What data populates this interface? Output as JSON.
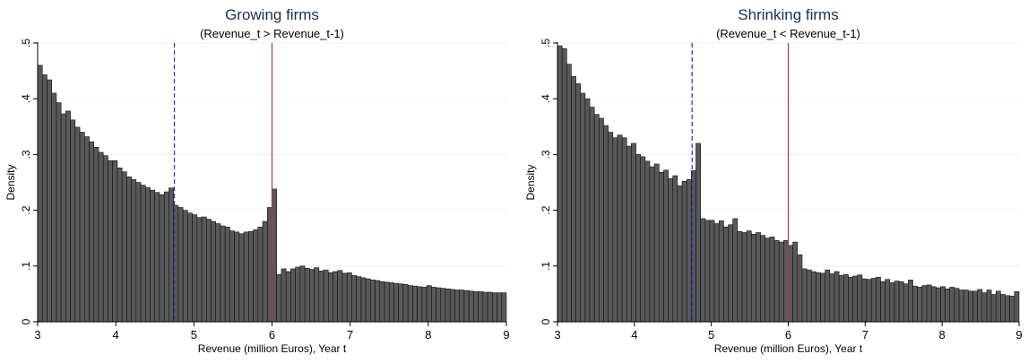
{
  "chart_data": [
    {
      "type": "bar",
      "title": "Growing firms",
      "subtitle": "(Revenue_t > Revenue_t-1)",
      "xlabel": "Revenue (million Euros), Year t",
      "ylabel": "Density",
      "xlim": [
        3,
        9
      ],
      "ylim": [
        0,
        0.5
      ],
      "x_ticks": [
        "3",
        "4",
        "5",
        "6",
        "7",
        "8",
        "9"
      ],
      "y_ticks": [
        "0",
        ".1",
        ".2",
        ".3",
        ".4",
        ".5"
      ],
      "bin_start": 3.0,
      "bin_width": 0.06,
      "values": [
        0.46,
        0.443,
        0.434,
        0.41,
        0.393,
        0.373,
        0.378,
        0.362,
        0.349,
        0.34,
        0.332,
        0.323,
        0.313,
        0.304,
        0.298,
        0.289,
        0.289,
        0.276,
        0.269,
        0.26,
        0.255,
        0.25,
        0.245,
        0.241,
        0.236,
        0.232,
        0.228,
        0.233,
        0.24,
        0.209,
        0.205,
        0.2,
        0.195,
        0.192,
        0.187,
        0.188,
        0.184,
        0.18,
        0.176,
        0.172,
        0.17,
        0.163,
        0.161,
        0.158,
        0.161,
        0.162,
        0.165,
        0.17,
        0.18,
        0.205,
        0.238,
        0.085,
        0.095,
        0.09,
        0.095,
        0.098,
        0.1,
        0.096,
        0.094,
        0.097,
        0.091,
        0.093,
        0.088,
        0.09,
        0.092,
        0.087,
        0.088,
        0.083,
        0.081,
        0.079,
        0.077,
        0.075,
        0.074,
        0.072,
        0.071,
        0.07,
        0.069,
        0.068,
        0.067,
        0.065,
        0.064,
        0.063,
        0.062,
        0.065,
        0.062,
        0.061,
        0.06,
        0.059,
        0.058,
        0.057,
        0.057,
        0.056,
        0.055,
        0.054,
        0.054,
        0.053,
        0.053,
        0.052,
        0.052,
        0.052
      ],
      "reference_lines": [
        {
          "x": 4.75,
          "style": "dashed",
          "color": "#1f33c8"
        },
        {
          "x": 6.0,
          "style": "solid",
          "color": "#b0305a"
        }
      ],
      "bar_color": "#595959",
      "grid": true,
      "legend": "none"
    },
    {
      "type": "bar",
      "title": "Shrinking firms",
      "subtitle": "(Revenue_t < Revenue_t-1)",
      "xlabel": "Revenue (million Euros), Year t",
      "ylabel": "Density",
      "xlim": [
        3,
        9
      ],
      "ylim": [
        0,
        0.5
      ],
      "x_ticks": [
        "3",
        "4",
        "5",
        "6",
        "7",
        "8",
        "9"
      ],
      "y_ticks": [
        "0",
        ".1",
        ".2",
        ".3",
        ".4",
        ".5"
      ],
      "bin_start": 3.0,
      "bin_width": 0.06,
      "values": [
        0.495,
        0.49,
        0.462,
        0.44,
        0.427,
        0.41,
        0.4,
        0.385,
        0.372,
        0.365,
        0.352,
        0.34,
        0.33,
        0.335,
        0.33,
        0.315,
        0.32,
        0.3,
        0.296,
        0.288,
        0.278,
        0.283,
        0.268,
        0.272,
        0.257,
        0.262,
        0.244,
        0.252,
        0.255,
        0.271,
        0.32,
        0.185,
        0.182,
        0.182,
        0.176,
        0.181,
        0.17,
        0.174,
        0.185,
        0.162,
        0.16,
        0.163,
        0.157,
        0.16,
        0.155,
        0.15,
        0.152,
        0.146,
        0.143,
        0.146,
        0.137,
        0.143,
        0.12,
        0.095,
        0.093,
        0.09,
        0.088,
        0.087,
        0.093,
        0.086,
        0.09,
        0.083,
        0.085,
        0.08,
        0.082,
        0.084,
        0.077,
        0.076,
        0.078,
        0.08,
        0.072,
        0.076,
        0.07,
        0.073,
        0.072,
        0.068,
        0.075,
        0.064,
        0.062,
        0.065,
        0.066,
        0.063,
        0.061,
        0.063,
        0.059,
        0.062,
        0.06,
        0.057,
        0.057,
        0.055,
        0.055,
        0.058,
        0.052,
        0.057,
        0.049,
        0.055,
        0.049,
        0.047,
        0.046,
        0.054
      ],
      "reference_lines": [
        {
          "x": 4.75,
          "style": "dashed",
          "color": "#1f33c8"
        },
        {
          "x": 6.0,
          "style": "solid",
          "color": "#b0305a"
        }
      ],
      "bar_color": "#595959",
      "grid": true,
      "legend": "none"
    }
  ]
}
